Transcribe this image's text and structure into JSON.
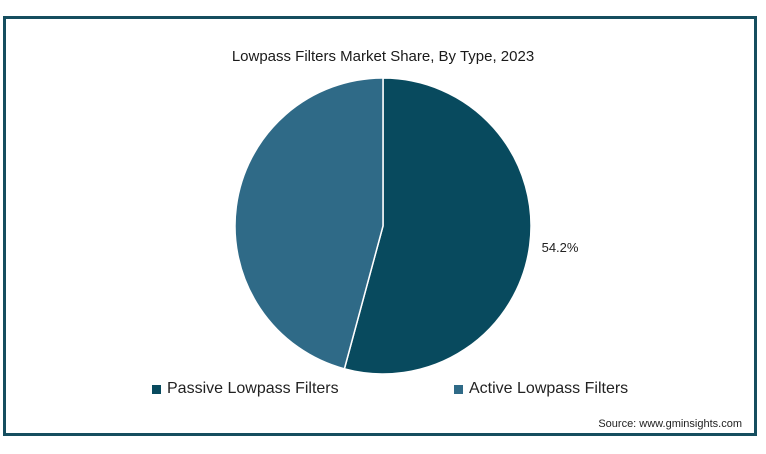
{
  "chart_data": {
    "type": "pie",
    "title": "Lowpass Filters Market Share, By Type, 2023",
    "slices": [
      {
        "name": "Passive Lowpass Filters",
        "value": 54.2,
        "label": "54.2%",
        "color": "#084a5e"
      },
      {
        "name": "Active Lowpass Filters",
        "value": 45.8,
        "label": "",
        "color": "#2f6a87"
      }
    ],
    "legend_position": "bottom"
  },
  "source": "Source: www.gminsights.com"
}
